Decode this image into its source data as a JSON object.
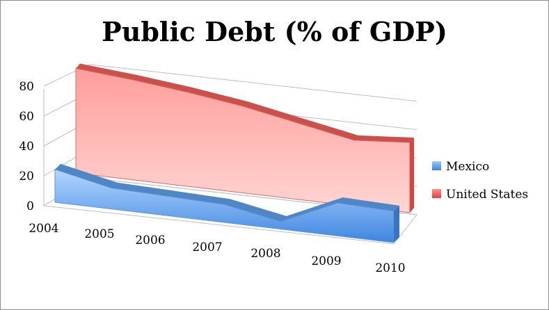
{
  "chart_data": {
    "type": "area",
    "title": "Public Debt (% of GDP)",
    "xlabel": "",
    "ylabel": "",
    "categories": [
      "2004",
      "2005",
      "2006",
      "2007",
      "2008",
      "2009",
      "2010"
    ],
    "ylim": [
      0,
      80
    ],
    "yticks": [
      0,
      20,
      40,
      60,
      80
    ],
    "grid": true,
    "legend_position": "right",
    "series": [
      {
        "name": "Mexico",
        "values": [
          22,
          14,
          13,
          12,
          5,
          22,
          21
        ],
        "color": "#5b9bd5"
      },
      {
        "name": "United States",
        "values": [
          70,
          67,
          63,
          58,
          51,
          44,
          47
        ],
        "color": "#e05a55"
      }
    ]
  }
}
